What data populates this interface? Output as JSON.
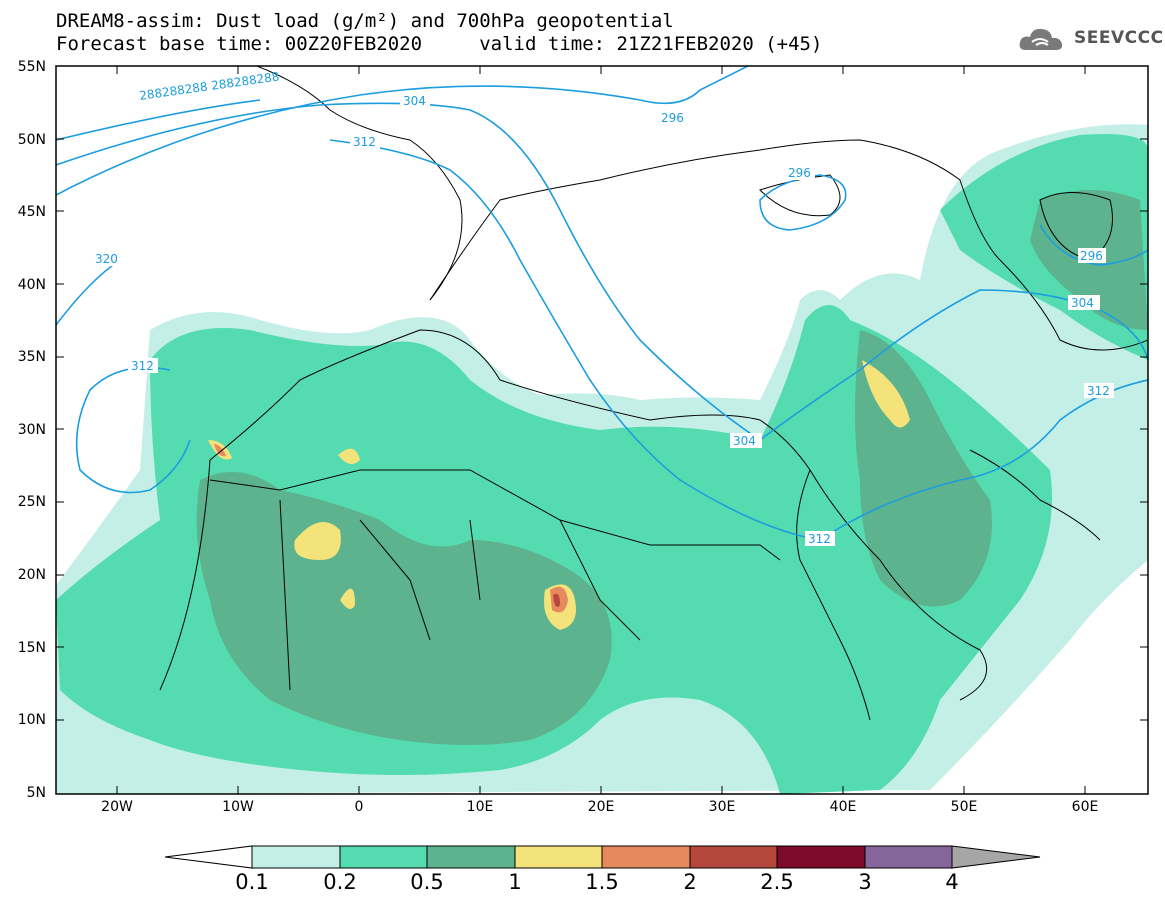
{
  "title": {
    "line1": "DREAM8-assim: Dust load (g/m²) and 700hPa geopotential",
    "line2": "Forecast base time: 00Z20FEB2020     valid time: 21Z21FEB2020 (+45)"
  },
  "logo": {
    "text": "SEEVCCC",
    "icon": "cloud-icon"
  },
  "axes": {
    "lat_labels": [
      "55N",
      "50N",
      "45N",
      "40N",
      "35N",
      "30N",
      "25N",
      "20N",
      "15N",
      "10N",
      "5N"
    ],
    "lon_labels": [
      "20W",
      "10W",
      "0",
      "10E",
      "20E",
      "30E",
      "40E",
      "50E",
      "60E"
    ]
  },
  "contour_labels": [
    "296",
    "296",
    "296",
    "304",
    "304",
    "304",
    "312",
    "312",
    "312",
    "312",
    "320",
    "288288288 288288288"
  ],
  "colorbar": {
    "ticks": [
      "0.1",
      "0.2",
      "0.5",
      "1",
      "1.5",
      "2",
      "2.5",
      "3",
      "4"
    ],
    "colors": [
      "#ffffff",
      "#c3efe6",
      "#54dcb0",
      "#5cb38d",
      "#f4e27a",
      "#e68a5e",
      "#b5473c",
      "#7d0a2a",
      "#86669a",
      "#a6a6a6"
    ]
  }
}
